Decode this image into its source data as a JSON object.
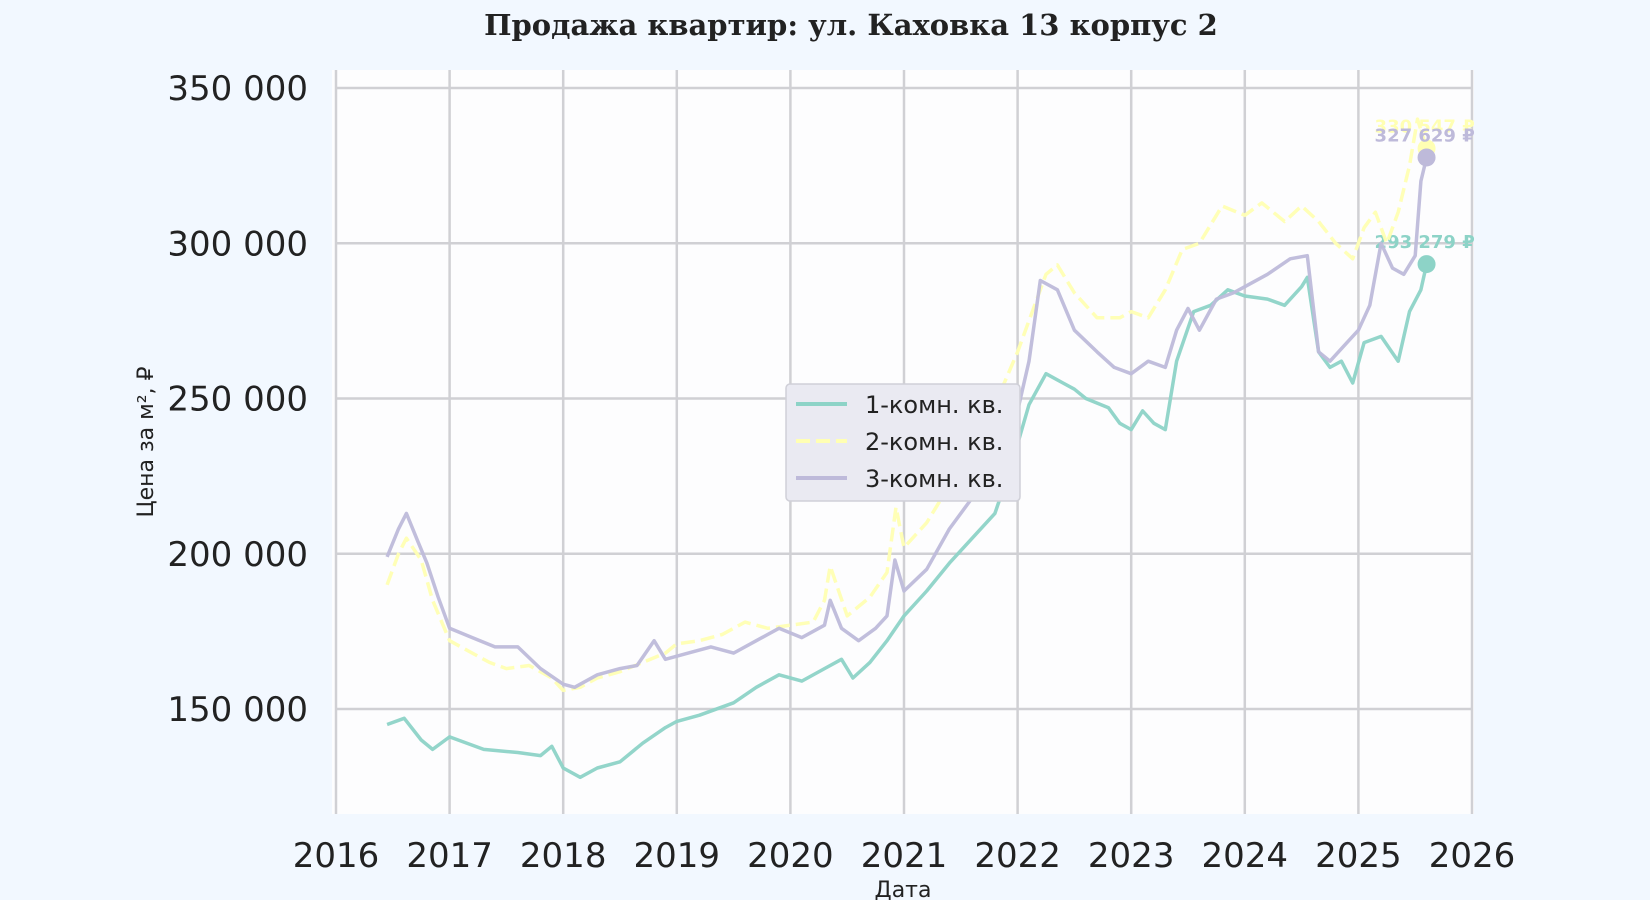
{
  "chart_data": {
    "type": "line",
    "title": "Продажа квартир: ул. Каховка 13 корпус 2",
    "xlabel": "Дата",
    "ylabel": "Цена за м², ₽",
    "xlim": [
      2016.0,
      2026.0
    ],
    "ylim": [
      116000,
      354000
    ],
    "x_ticks": [
      "2016",
      "2017",
      "2018",
      "2019",
      "2020",
      "2021",
      "2022",
      "2023",
      "2024",
      "2025",
      "2026"
    ],
    "y_ticks": [
      "150 000",
      "200 000",
      "250 000",
      "300 000",
      "350 000"
    ],
    "grid": true,
    "legend_position": "center",
    "series": [
      {
        "name": "1-комн. кв.",
        "color": "#8dd3c7",
        "dash": "solid",
        "end_label": "293 279 ₽",
        "end_value": 293279,
        "points": [
          [
            2016.45,
            145000
          ],
          [
            2016.6,
            147000
          ],
          [
            2016.75,
            140000
          ],
          [
            2016.85,
            137000
          ],
          [
            2017.0,
            141000
          ],
          [
            2017.3,
            137000
          ],
          [
            2017.6,
            136000
          ],
          [
            2017.8,
            135000
          ],
          [
            2017.9,
            138000
          ],
          [
            2018.0,
            131000
          ],
          [
            2018.15,
            128000
          ],
          [
            2018.3,
            131000
          ],
          [
            2018.5,
            133000
          ],
          [
            2018.7,
            139000
          ],
          [
            2018.9,
            144000
          ],
          [
            2019.0,
            146000
          ],
          [
            2019.2,
            148000
          ],
          [
            2019.5,
            152000
          ],
          [
            2019.7,
            157000
          ],
          [
            2019.9,
            161000
          ],
          [
            2020.1,
            159000
          ],
          [
            2020.3,
            163000
          ],
          [
            2020.45,
            166000
          ],
          [
            2020.55,
            160000
          ],
          [
            2020.7,
            165000
          ],
          [
            2020.85,
            172000
          ],
          [
            2021.0,
            180000
          ],
          [
            2021.2,
            188000
          ],
          [
            2021.4,
            197000
          ],
          [
            2021.6,
            205000
          ],
          [
            2021.8,
            213000
          ],
          [
            2021.95,
            229000
          ],
          [
            2022.1,
            248000
          ],
          [
            2022.25,
            258000
          ],
          [
            2022.4,
            255000
          ],
          [
            2022.5,
            253000
          ],
          [
            2022.6,
            250000
          ],
          [
            2022.8,
            247000
          ],
          [
            2022.9,
            242000
          ],
          [
            2023.0,
            240000
          ],
          [
            2023.1,
            246000
          ],
          [
            2023.2,
            242000
          ],
          [
            2023.3,
            240000
          ],
          [
            2023.4,
            262000
          ],
          [
            2023.55,
            278000
          ],
          [
            2023.7,
            280000
          ],
          [
            2023.85,
            285000
          ],
          [
            2024.0,
            283000
          ],
          [
            2024.2,
            282000
          ],
          [
            2024.35,
            280000
          ],
          [
            2024.5,
            286000
          ],
          [
            2024.55,
            289000
          ],
          [
            2024.65,
            265000
          ],
          [
            2024.75,
            260000
          ],
          [
            2024.85,
            262000
          ],
          [
            2024.95,
            255000
          ],
          [
            2025.05,
            268000
          ],
          [
            2025.2,
            270000
          ],
          [
            2025.35,
            262000
          ],
          [
            2025.45,
            278000
          ],
          [
            2025.55,
            285000
          ],
          [
            2025.6,
            293279
          ]
        ]
      },
      {
        "name": "2-комн. кв.",
        "color": "#ffffb3",
        "dash": "dashed",
        "end_label": "330 547 ₽",
        "end_value": 330547,
        "points": [
          [
            2016.45,
            190000
          ],
          [
            2016.55,
            200000
          ],
          [
            2016.62,
            205000
          ],
          [
            2016.75,
            198000
          ],
          [
            2016.85,
            185000
          ],
          [
            2017.0,
            172000
          ],
          [
            2017.2,
            168000
          ],
          [
            2017.35,
            165000
          ],
          [
            2017.5,
            163000
          ],
          [
            2017.7,
            164000
          ],
          [
            2017.9,
            160000
          ],
          [
            2018.0,
            156000
          ],
          [
            2018.15,
            157000
          ],
          [
            2018.3,
            160000
          ],
          [
            2018.5,
            162000
          ],
          [
            2018.7,
            165000
          ],
          [
            2018.9,
            168000
          ],
          [
            2019.0,
            171000
          ],
          [
            2019.2,
            172000
          ],
          [
            2019.4,
            174000
          ],
          [
            2019.6,
            178000
          ],
          [
            2019.8,
            176000
          ],
          [
            2020.0,
            177000
          ],
          [
            2020.2,
            178000
          ],
          [
            2020.3,
            185000
          ],
          [
            2020.35,
            196000
          ],
          [
            2020.5,
            180000
          ],
          [
            2020.7,
            186000
          ],
          [
            2020.85,
            194000
          ],
          [
            2020.93,
            215000
          ],
          [
            2021.0,
            202000
          ],
          [
            2021.2,
            210000
          ],
          [
            2021.4,
            222000
          ],
          [
            2021.6,
            235000
          ],
          [
            2021.8,
            248000
          ],
          [
            2022.0,
            265000
          ],
          [
            2022.15,
            280000
          ],
          [
            2022.25,
            290000
          ],
          [
            2022.35,
            293000
          ],
          [
            2022.5,
            284000
          ],
          [
            2022.7,
            276000
          ],
          [
            2022.9,
            276000
          ],
          [
            2023.0,
            278000
          ],
          [
            2023.15,
            276000
          ],
          [
            2023.3,
            285000
          ],
          [
            2023.45,
            298000
          ],
          [
            2023.6,
            300000
          ],
          [
            2023.8,
            312000
          ],
          [
            2024.0,
            309000
          ],
          [
            2024.15,
            313000
          ],
          [
            2024.35,
            307000
          ],
          [
            2024.5,
            312000
          ],
          [
            2024.65,
            307000
          ],
          [
            2024.8,
            300000
          ],
          [
            2024.95,
            295000
          ],
          [
            2025.05,
            305000
          ],
          [
            2025.15,
            310000
          ],
          [
            2025.25,
            300000
          ],
          [
            2025.35,
            310000
          ],
          [
            2025.45,
            325000
          ],
          [
            2025.52,
            340000
          ],
          [
            2025.6,
            330547
          ]
        ]
      },
      {
        "name": "3-комн. кв.",
        "color": "#bebada",
        "dash": "solid",
        "end_label": "327 629 ₽",
        "end_value": 327629,
        "points": [
          [
            2016.45,
            199000
          ],
          [
            2016.55,
            208000
          ],
          [
            2016.62,
            213000
          ],
          [
            2016.72,
            204000
          ],
          [
            2016.8,
            197000
          ],
          [
            2016.9,
            186000
          ],
          [
            2017.0,
            176000
          ],
          [
            2017.2,
            173000
          ],
          [
            2017.4,
            170000
          ],
          [
            2017.6,
            170000
          ],
          [
            2017.8,
            163000
          ],
          [
            2018.0,
            158000
          ],
          [
            2018.1,
            157000
          ],
          [
            2018.3,
            161000
          ],
          [
            2018.5,
            163000
          ],
          [
            2018.65,
            164000
          ],
          [
            2018.8,
            172000
          ],
          [
            2018.9,
            166000
          ],
          [
            2019.1,
            168000
          ],
          [
            2019.3,
            170000
          ],
          [
            2019.5,
            168000
          ],
          [
            2019.7,
            172000
          ],
          [
            2019.9,
            176000
          ],
          [
            2020.1,
            173000
          ],
          [
            2020.3,
            177000
          ],
          [
            2020.35,
            185000
          ],
          [
            2020.45,
            176000
          ],
          [
            2020.6,
            172000
          ],
          [
            2020.75,
            176000
          ],
          [
            2020.85,
            180000
          ],
          [
            2020.92,
            198000
          ],
          [
            2021.0,
            188000
          ],
          [
            2021.2,
            195000
          ],
          [
            2021.4,
            208000
          ],
          [
            2021.6,
            218000
          ],
          [
            2021.8,
            230000
          ],
          [
            2021.95,
            238000
          ],
          [
            2022.1,
            262000
          ],
          [
            2022.2,
            288000
          ],
          [
            2022.35,
            285000
          ],
          [
            2022.5,
            272000
          ],
          [
            2022.7,
            265000
          ],
          [
            2022.85,
            260000
          ],
          [
            2023.0,
            258000
          ],
          [
            2023.15,
            262000
          ],
          [
            2023.3,
            260000
          ],
          [
            2023.4,
            272000
          ],
          [
            2023.5,
            279000
          ],
          [
            2023.6,
            272000
          ],
          [
            2023.75,
            282000
          ],
          [
            2023.9,
            284000
          ],
          [
            2024.0,
            286000
          ],
          [
            2024.2,
            290000
          ],
          [
            2024.4,
            295000
          ],
          [
            2024.55,
            296000
          ],
          [
            2024.65,
            265000
          ],
          [
            2024.75,
            262000
          ],
          [
            2024.9,
            268000
          ],
          [
            2025.0,
            272000
          ],
          [
            2025.1,
            280000
          ],
          [
            2025.2,
            300000
          ],
          [
            2025.3,
            292000
          ],
          [
            2025.4,
            290000
          ],
          [
            2025.5,
            296000
          ],
          [
            2025.55,
            320000
          ],
          [
            2025.6,
            327629
          ]
        ]
      }
    ]
  }
}
